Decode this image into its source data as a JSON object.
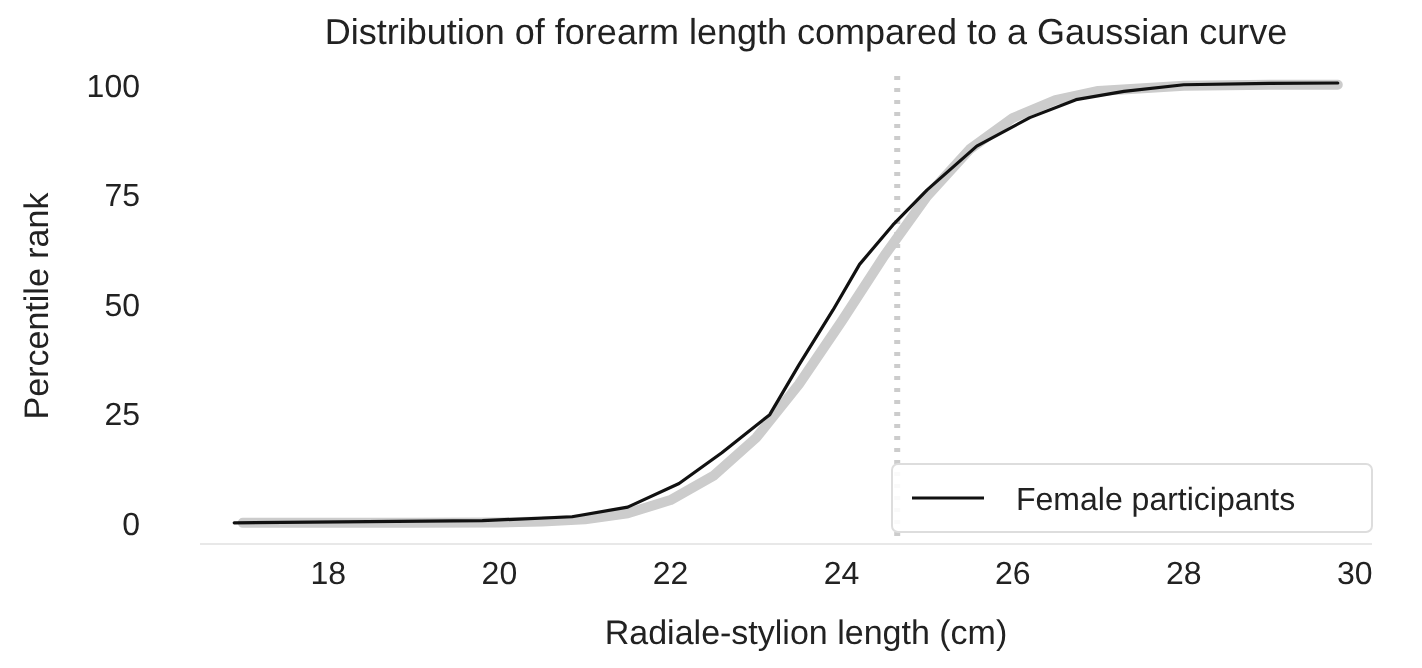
{
  "chart_data": {
    "type": "line",
    "title": "Distribution of forearm length compared to a Gaussian curve",
    "xlabel": "Radiale-stylion length (cm)",
    "ylabel": "Percentile rank",
    "xlim": [
      16.5,
      30.2
    ],
    "xticks": [
      18,
      20,
      22,
      24,
      26,
      28,
      30
    ],
    "ylim": [
      -3,
      102
    ],
    "yticks": [
      0,
      25,
      50,
      75,
      100
    ],
    "legend": "bottom right",
    "grid": false,
    "series": [
      {
        "color": "#cccccc",
        "x": [
          17,
          18,
          19,
          20,
          20.5,
          21,
          21.5,
          22,
          22.5,
          23,
          23.5,
          24,
          24.5,
          25,
          25.5,
          26,
          26.5,
          27,
          28,
          29,
          29.8
        ],
        "values": [
          0,
          0,
          0,
          0.1,
          0.3,
          0.8,
          2.2,
          5.2,
          10.7,
          19.4,
          31.6,
          46,
          61,
          74.6,
          85.3,
          92.4,
          96.5,
          98.6,
          99.8,
          100,
          100
        ]
      },
      {
        "name": "Female participants",
        "color": "#111111",
        "x": [
          16.9,
          19.8,
          20.85,
          21.5,
          22.1,
          22.6,
          23.16,
          23.5,
          23.9,
          24.21,
          24.6,
          25,
          25.58,
          26.2,
          26.74,
          27.3,
          28,
          29,
          29.8
        ],
        "values": [
          0,
          0.5,
          1.4,
          3.6,
          9,
          16,
          24.7,
          36,
          48.6,
          59,
          68,
          76,
          86,
          92.5,
          96.6,
          98.5,
          100,
          100.3,
          100.4
        ]
      }
    ],
    "ref_lines": [
      {
        "axis": "x",
        "value": 24.65,
        "color": "#cccccc",
        "line_style": "dotted"
      }
    ]
  }
}
